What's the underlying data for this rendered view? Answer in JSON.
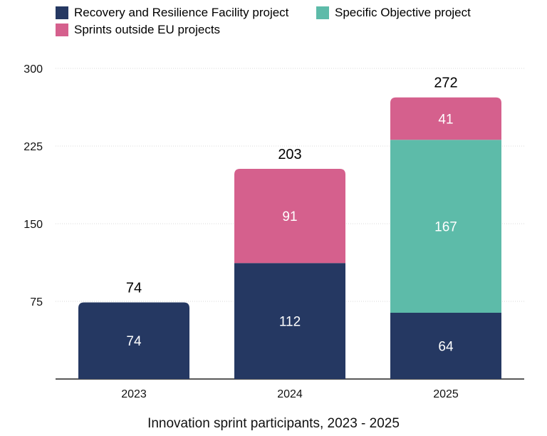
{
  "chart_data": {
    "type": "bar",
    "stacked": true,
    "categories": [
      "2023",
      "2024",
      "2025"
    ],
    "series": [
      {
        "name": "Recovery and Resilience Facility project",
        "color": "#253862",
        "values": [
          74,
          112,
          64
        ]
      },
      {
        "name": "Specific Objective project",
        "color": "#5dbba9",
        "values": [
          0,
          0,
          167
        ]
      },
      {
        "name": "Sprints outside EU projects",
        "color": "#d5608d",
        "values": [
          0,
          91,
          41
        ]
      }
    ],
    "totals": [
      74,
      203,
      272
    ],
    "yticks": [
      75,
      150,
      225,
      300
    ],
    "ylim": [
      0,
      300
    ],
    "grid": true,
    "legend_position": "top",
    "title": "",
    "caption": "Innovation sprint participants, 2023 - 2025",
    "xlabel": "",
    "ylabel": ""
  }
}
